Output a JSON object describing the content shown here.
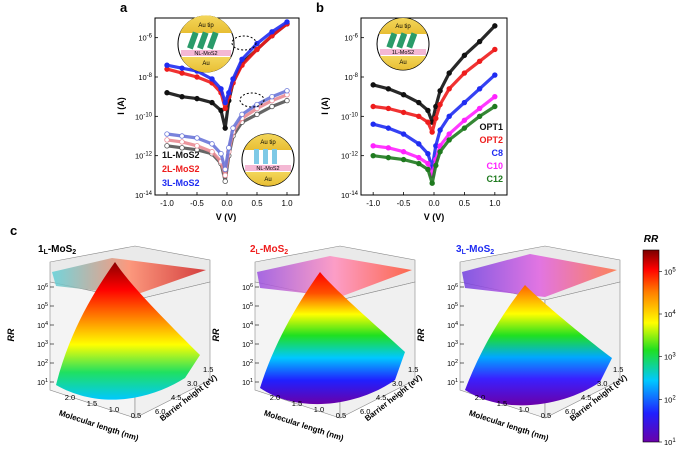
{
  "figure": {
    "panel_a": "a",
    "panel_b": "b",
    "panel_c": "c"
  },
  "colors": {
    "black": "#111111",
    "red": "#ee1c1c",
    "blue": "#1f2cf2",
    "magenta": "#ff22ff",
    "green": "#1f7a1f",
    "gray": "#555555",
    "pink": "#e98b94",
    "lightblue": "#6a76d8"
  },
  "chart_data": [
    {
      "type": "line",
      "panel": "a",
      "xlabel": "V (V)",
      "ylabel": "I (A)",
      "xlim": [
        -1.2,
        1.2
      ],
      "ylim_log10": [
        -14,
        -5
      ],
      "x_ticks": [
        "-1.0",
        "-0.5",
        "0.0",
        "0.5",
        "1.0"
      ],
      "y_ticks": [
        "10^-14",
        "10^-12",
        "10^-10",
        "10^-8",
        "10^-6"
      ],
      "legend": [
        "1L-MoS2",
        "2L-MoS2",
        "3L-MoS2"
      ],
      "insets": [
        {
          "top": "Au tip",
          "molecule": "OPT",
          "layer": "NL-MoS2",
          "bottom": "Au"
        },
        {
          "top": "Au tip",
          "molecule": "C12",
          "layer": "NL-MoS2",
          "bottom": "Au"
        }
      ],
      "series": [
        {
          "name": "1L-MoS2 OPT",
          "color": "#111111",
          "x": [
            -1.0,
            -0.75,
            -0.5,
            -0.25,
            -0.1,
            -0.03,
            0.03,
            0.1,
            0.25,
            0.5,
            0.75,
            1.0
          ],
          "log_i": [
            -8.8,
            -9.0,
            -9.1,
            -9.3,
            -9.7,
            -10.6,
            -9.2,
            -8.3,
            -7.3,
            -6.6,
            -5.9,
            -5.3
          ]
        },
        {
          "name": "2L-MoS2 OPT",
          "color": "#ee1c1c",
          "x": [
            -1.0,
            -0.75,
            -0.5,
            -0.25,
            -0.1,
            -0.03,
            0.03,
            0.1,
            0.25,
            0.5,
            0.75,
            1.0
          ],
          "log_i": [
            -7.6,
            -7.8,
            -8.0,
            -8.3,
            -8.8,
            -9.6,
            -9.0,
            -8.3,
            -7.4,
            -6.6,
            -5.9,
            -5.3
          ]
        },
        {
          "name": "3L-MoS2 OPT",
          "color": "#1f2cf2",
          "x": [
            -1.0,
            -0.75,
            -0.5,
            -0.25,
            -0.1,
            -0.03,
            0.03,
            0.1,
            0.25,
            0.5,
            0.75,
            1.0
          ],
          "log_i": [
            -7.4,
            -7.55,
            -7.7,
            -8.1,
            -8.6,
            -9.3,
            -8.8,
            -8.1,
            -7.1,
            -6.3,
            -5.7,
            -5.2
          ]
        },
        {
          "name": "1L-MoS2 C12",
          "color": "#555555",
          "x": [
            -1.0,
            -0.75,
            -0.5,
            -0.25,
            -0.1,
            -0.03,
            0.03,
            0.1,
            0.25,
            0.5,
            0.75,
            1.0
          ],
          "log_i": [
            -11.5,
            -11.6,
            -11.7,
            -11.9,
            -12.4,
            -13.3,
            -12.0,
            -11.0,
            -10.3,
            -9.9,
            -9.5,
            -9.2
          ]
        },
        {
          "name": "2L-MoS2 C12",
          "color": "#e98b94",
          "x": [
            -1.0,
            -0.75,
            -0.5,
            -0.25,
            -0.1,
            -0.03,
            0.03,
            0.1,
            0.25,
            0.5,
            0.75,
            1.0
          ],
          "log_i": [
            -11.2,
            -11.3,
            -11.5,
            -11.8,
            -12.3,
            -13.0,
            -11.8,
            -10.8,
            -10.1,
            -9.6,
            -9.2,
            -8.9
          ]
        },
        {
          "name": "3L-MoS2 C12",
          "color": "#6a76d8",
          "x": [
            -1.0,
            -0.75,
            -0.5,
            -0.25,
            -0.1,
            -0.03,
            0.03,
            0.1,
            0.25,
            0.5,
            0.75,
            1.0
          ],
          "log_i": [
            -10.9,
            -11.0,
            -11.1,
            -11.4,
            -11.9,
            -12.7,
            -11.6,
            -10.6,
            -9.9,
            -9.4,
            -9.0,
            -8.7
          ]
        }
      ]
    },
    {
      "type": "line",
      "panel": "b",
      "xlabel": "V (V)",
      "ylabel": "I (A)",
      "xlim": [
        -1.2,
        1.2
      ],
      "ylim_log10": [
        -14,
        -5
      ],
      "x_ticks": [
        "-1.0",
        "-0.5",
        "0.0",
        "0.5",
        "1.0"
      ],
      "y_ticks": [
        "10^-14",
        "10^-12",
        "10^-10",
        "10^-8",
        "10^-6"
      ],
      "inset": {
        "top": "Au tip",
        "molecule": "OPT",
        "layer": "1L-MoS2",
        "bottom": "Au"
      },
      "legend": [
        "OPT1",
        "OPT2",
        "C8",
        "C10",
        "C12"
      ],
      "series": [
        {
          "name": "OPT1",
          "color": "#111111",
          "x": [
            -1.0,
            -0.75,
            -0.5,
            -0.25,
            -0.1,
            -0.03,
            0.03,
            0.1,
            0.25,
            0.5,
            0.75,
            1.0
          ],
          "log_i": [
            -8.4,
            -8.6,
            -8.9,
            -9.3,
            -9.7,
            -10.3,
            -9.5,
            -8.7,
            -7.8,
            -6.9,
            -6.2,
            -5.4
          ]
        },
        {
          "name": "OPT2",
          "color": "#ee1c1c",
          "x": [
            -1.0,
            -0.75,
            -0.5,
            -0.25,
            -0.1,
            -0.03,
            0.03,
            0.1,
            0.25,
            0.5,
            0.75,
            1.0
          ],
          "log_i": [
            -9.5,
            -9.6,
            -9.8,
            -10.0,
            -10.3,
            -10.8,
            -10.1,
            -9.4,
            -8.6,
            -7.8,
            -7.2,
            -6.6
          ]
        },
        {
          "name": "C8",
          "color": "#1f2cf2",
          "x": [
            -1.0,
            -0.75,
            -0.5,
            -0.25,
            -0.1,
            -0.03,
            0.03,
            0.1,
            0.25,
            0.5,
            0.75,
            1.0
          ],
          "log_i": [
            -10.4,
            -10.6,
            -10.9,
            -11.4,
            -11.9,
            -12.6,
            -11.5,
            -10.7,
            -10.0,
            -9.3,
            -8.6,
            -7.9
          ]
        },
        {
          "name": "C10",
          "color": "#ff22ff",
          "x": [
            -1.0,
            -0.75,
            -0.5,
            -0.25,
            -0.1,
            -0.03,
            0.03,
            0.1,
            0.25,
            0.5,
            0.75,
            1.0
          ],
          "log_i": [
            -11.5,
            -11.6,
            -11.8,
            -12.1,
            -12.4,
            -13.0,
            -12.2,
            -11.5,
            -10.9,
            -10.2,
            -9.6,
            -9.0
          ]
        },
        {
          "name": "C12",
          "color": "#1f7a1f",
          "x": [
            -1.0,
            -0.75,
            -0.5,
            -0.25,
            -0.1,
            -0.03,
            0.03,
            0.1,
            0.25,
            0.5,
            0.75,
            1.0
          ],
          "log_i": [
            -12.0,
            -12.1,
            -12.2,
            -12.4,
            -12.7,
            -13.4,
            -12.5,
            -11.8,
            -11.2,
            -10.6,
            -10.0,
            -9.5
          ]
        }
      ]
    },
    {
      "type": "surface",
      "panel": "c",
      "plots": [
        {
          "title": "1L-MoS2",
          "title_main": "1",
          "title_sub": "L",
          "title_rest": "-MoS",
          "title_sub2": "2",
          "title_color": "#111111"
        },
        {
          "title": "2L-MoS2",
          "title_main": "2",
          "title_sub": "L",
          "title_rest": "-MoS",
          "title_sub2": "2",
          "title_color": "#ee1c1c"
        },
        {
          "title": "3L-MoS2",
          "title_main": "3",
          "title_sub": "L",
          "title_rest": "-MoS",
          "title_sub2": "2",
          "title_color": "#1f2cf2"
        }
      ],
      "zlabel": "RR",
      "z_ticks": [
        "10^1",
        "10^2",
        "10^3",
        "10^4",
        "10^5",
        "10^6"
      ],
      "x_label": "Molecular length (nm)",
      "x_ticks": [
        "2.0",
        "1.5",
        "1.0",
        "0.5"
      ],
      "y_label": "Barrier height (eV)",
      "y_ticks": [
        "1.5",
        "3.0",
        "4.5",
        "6.0"
      ],
      "colorbar": {
        "label": "RR",
        "ticks": [
          "10^5",
          "10^4",
          "10^3",
          "10^2",
          "10^1"
        ],
        "range_log10": [
          1,
          5.5
        ]
      }
    }
  ]
}
